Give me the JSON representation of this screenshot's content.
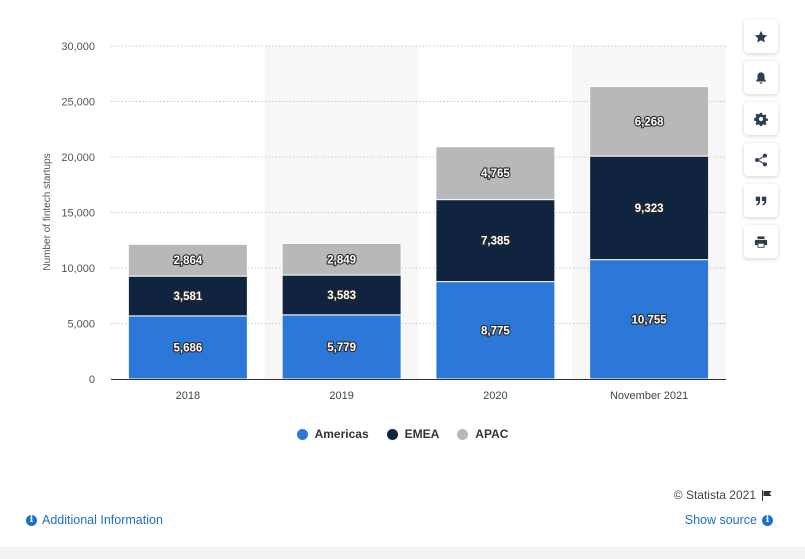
{
  "chart_data": {
    "type": "bar",
    "stacked": true,
    "categories": [
      "2018",
      "2019",
      "2020",
      "November 2021"
    ],
    "series": [
      {
        "name": "Americas",
        "color": "#2b78d8",
        "values": [
          5686,
          5779,
          8775,
          10755
        ],
        "labels": [
          "5,686",
          "5,779",
          "8,775",
          "10,755"
        ]
      },
      {
        "name": "EMEA",
        "color": "#10243f",
        "values": [
          3581,
          3583,
          7385,
          9323
        ],
        "labels": [
          "3,581",
          "3,583",
          "7,385",
          "9,323"
        ]
      },
      {
        "name": "APAC",
        "color": "#b8b8b8",
        "values": [
          2864,
          2849,
          4765,
          6268
        ],
        "labels": [
          "2,864",
          "2,849",
          "4,765",
          "6,268"
        ]
      }
    ],
    "ylabel": "Number of fintech startups",
    "ylim": [
      0,
      30000
    ],
    "yticks": [
      0,
      5000,
      10000,
      15000,
      20000,
      25000,
      30000
    ],
    "ytick_labels": [
      "0",
      "5,000",
      "10,000",
      "15,000",
      "20,000",
      "25,000",
      "30,000"
    ],
    "grid": true,
    "legend_position": "bottom-center"
  },
  "footer": {
    "credit": "© Statista 2021",
    "additional_info": "Additional Information",
    "show_source": "Show source"
  },
  "toolbar_icons": [
    "star-icon",
    "bell-icon",
    "gear-icon",
    "share-icon",
    "quote-icon",
    "print-icon"
  ]
}
